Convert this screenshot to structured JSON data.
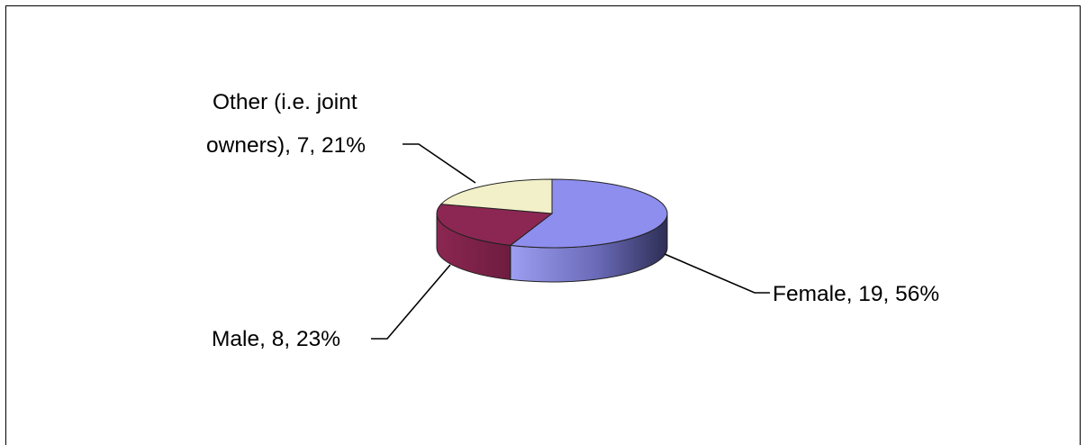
{
  "chart_data": {
    "type": "pie",
    "style": "3d",
    "slices": [
      {
        "label": "Female",
        "value": 19,
        "percent": 56,
        "color": "#8E8EEE",
        "side_color": "#3A3A66"
      },
      {
        "label": "Male",
        "value": 8,
        "percent": 23,
        "color": "#8B2752",
        "side_color": "#5E1535"
      },
      {
        "label": "Other (i.e. joint owners)",
        "value": 7,
        "percent": 21,
        "color": "#F2F0C8",
        "side_color": "#C9C69A"
      }
    ],
    "data_labels": {
      "female": "Female, 19, 56%",
      "male": "Male, 8, 23%",
      "other_line1": "Other (i.e. joint",
      "other_line2": "owners), 7, 21%"
    },
    "title": "",
    "legend": "none"
  }
}
